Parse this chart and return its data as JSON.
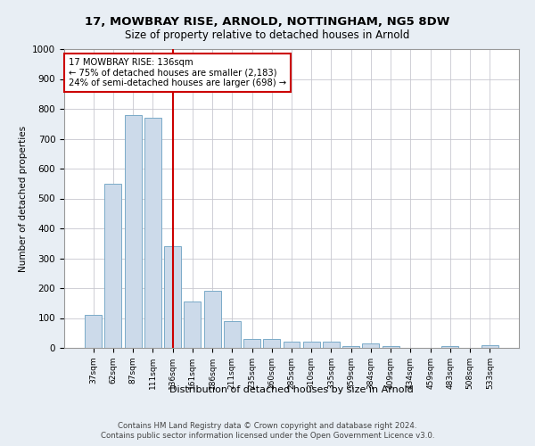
{
  "title1": "17, MOWBRAY RISE, ARNOLD, NOTTINGHAM, NG5 8DW",
  "title2": "Size of property relative to detached houses in Arnold",
  "xlabel": "Distribution of detached houses by size in Arnold",
  "ylabel": "Number of detached properties",
  "categories": [
    "37sqm",
    "62sqm",
    "87sqm",
    "111sqm",
    "136sqm",
    "161sqm",
    "186sqm",
    "211sqm",
    "235sqm",
    "260sqm",
    "285sqm",
    "310sqm",
    "335sqm",
    "359sqm",
    "384sqm",
    "409sqm",
    "434sqm",
    "459sqm",
    "483sqm",
    "508sqm",
    "533sqm"
  ],
  "values": [
    110,
    550,
    780,
    770,
    340,
    155,
    190,
    90,
    30,
    30,
    20,
    20,
    20,
    5,
    15,
    5,
    0,
    0,
    5,
    0,
    10
  ],
  "bar_color": "#ccdaea",
  "bar_edge_color": "#7aaac8",
  "vline_x": 4,
  "vline_color": "#cc0000",
  "annotation_line1": "17 MOWBRAY RISE: 136sqm",
  "annotation_line2": "← 75% of detached houses are smaller (2,183)",
  "annotation_line3": "24% of semi-detached houses are larger (698) →",
  "annotation_box_color": "#ffffff",
  "annotation_box_edge": "#cc0000",
  "ylim": [
    0,
    1000
  ],
  "yticks": [
    0,
    100,
    200,
    300,
    400,
    500,
    600,
    700,
    800,
    900,
    1000
  ],
  "footnote1": "Contains HM Land Registry data © Crown copyright and database right 2024.",
  "footnote2": "Contains public sector information licensed under the Open Government Licence v3.0.",
  "bg_color": "#e8eef4",
  "plot_bg_color": "#ffffff",
  "grid_color": "#c8c8d0"
}
